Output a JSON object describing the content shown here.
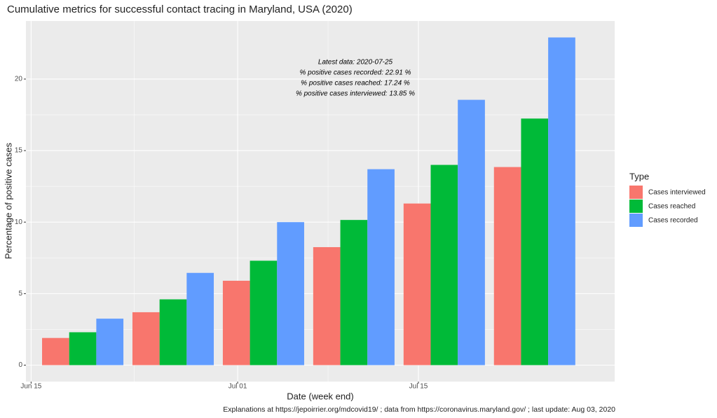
{
  "chart_data": {
    "type": "bar",
    "title": "Cumulative metrics for successful contact tracing in Maryland, USA (2020)",
    "x_label": "Date (week end)",
    "y_label": "Percentage of positive cases",
    "caption": "Explanations at https://jepoirrier.org/mdcovid19/ ; data from https://coronavirus.maryland.gov/ ; last update: Aug 03, 2020",
    "annotations": [
      "Latest data: 2020-07-25",
      "% positive cases recorded: 22.91 %",
      "% positive cases reached: 17.24 %",
      "% positive cases interviewed: 13.85 %"
    ],
    "legend_title": "Type",
    "legend_position": "right",
    "x": [
      171,
      178,
      185,
      192,
      199,
      206
    ],
    "xlim": [
      166.6,
      212.2
    ],
    "xticks": [
      {
        "value": 167,
        "label": "Jun 15"
      },
      {
        "value": 183,
        "label": "Jul 01"
      },
      {
        "value": 197,
        "label": "Jul 15"
      }
    ],
    "ylim": [
      -1.15,
      24.06
    ],
    "yticks": [
      0,
      5,
      10,
      15,
      20
    ],
    "grid": true,
    "series": [
      {
        "name": "Cases interviewed",
        "color": "#F8766D",
        "values": [
          1.9,
          3.7,
          5.9,
          8.25,
          11.3,
          13.85
        ]
      },
      {
        "name": "Cases reached",
        "color": "#00BA38",
        "values": [
          2.3,
          4.6,
          7.3,
          10.15,
          14.0,
          17.24
        ]
      },
      {
        "name": "Cases recorded",
        "color": "#619CFF",
        "values": [
          3.25,
          6.45,
          10.0,
          13.7,
          18.55,
          22.91
        ]
      }
    ]
  }
}
